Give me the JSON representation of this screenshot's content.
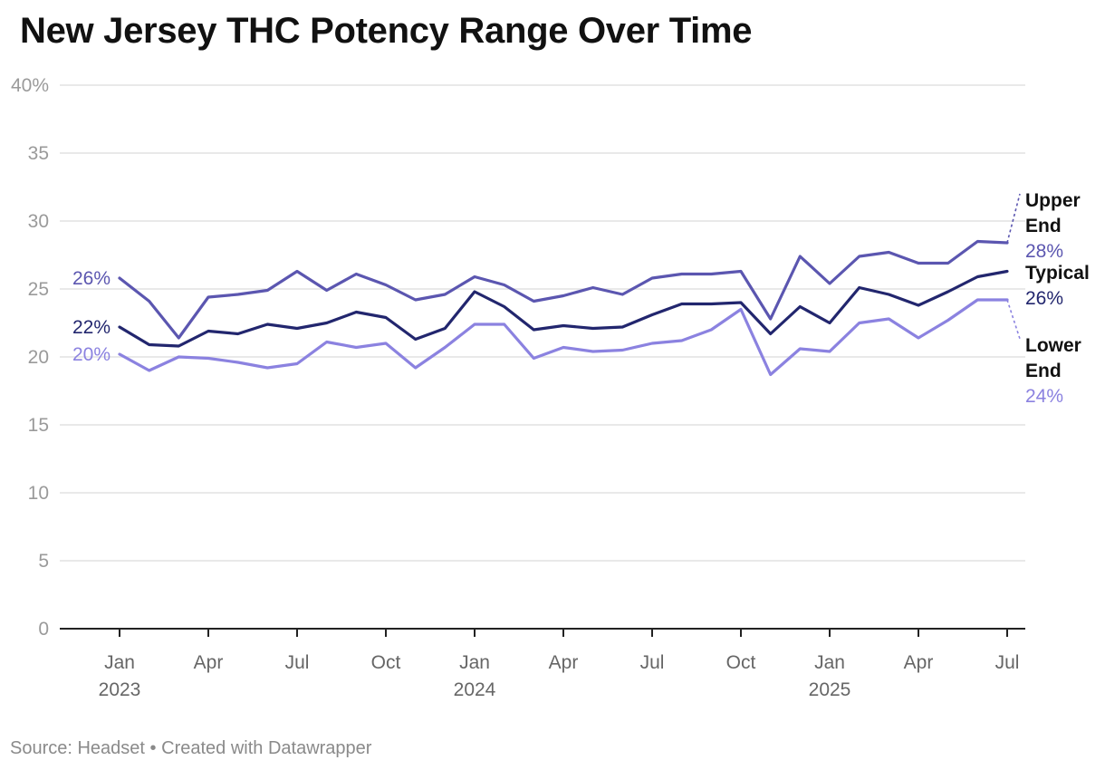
{
  "title": "New Jersey THC Potency Range Over Time",
  "footer": {
    "source_label": "Source: Headset",
    "separator": "•",
    "created_with": "Created with Datawrapper"
  },
  "colors": {
    "upper": "#5b56b0",
    "typical": "#22266e",
    "lower": "#8b82e0",
    "grid": "#e2e2e2",
    "axis": "#222222",
    "tick_text": "#666666",
    "y_tick_text": "#9a9a9a"
  },
  "chart_data": {
    "type": "line",
    "title": "New Jersey THC Potency Range Over Time",
    "x_unit": "month",
    "x": [
      "2023-01",
      "2023-02",
      "2023-03",
      "2023-04",
      "2023-05",
      "2023-06",
      "2023-07",
      "2023-08",
      "2023-09",
      "2023-10",
      "2023-11",
      "2023-12",
      "2024-01",
      "2024-02",
      "2024-03",
      "2024-04",
      "2024-05",
      "2024-06",
      "2024-07",
      "2024-08",
      "2024-09",
      "2024-10",
      "2024-11",
      "2024-12",
      "2025-01",
      "2025-02",
      "2025-03",
      "2025-04",
      "2025-05",
      "2025-06",
      "2025-07"
    ],
    "ylim": [
      0,
      40
    ],
    "y_ticks": [
      0,
      5,
      10,
      15,
      20,
      25,
      30,
      35,
      40
    ],
    "y_tick_labels": [
      "0",
      "5",
      "10",
      "15",
      "20",
      "25",
      "30",
      "35",
      "40%"
    ],
    "x_ticks": [
      {
        "x": "2023-01",
        "label": "Jan",
        "year": "2023"
      },
      {
        "x": "2023-04",
        "label": "Apr",
        "year": ""
      },
      {
        "x": "2023-07",
        "label": "Jul",
        "year": ""
      },
      {
        "x": "2023-10",
        "label": "Oct",
        "year": ""
      },
      {
        "x": "2024-01",
        "label": "Jan",
        "year": "2024"
      },
      {
        "x": "2024-04",
        "label": "Apr",
        "year": ""
      },
      {
        "x": "2024-07",
        "label": "Jul",
        "year": ""
      },
      {
        "x": "2024-10",
        "label": "Oct",
        "year": ""
      },
      {
        "x": "2025-01",
        "label": "Jan",
        "year": "2025"
      },
      {
        "x": "2025-04",
        "label": "Apr",
        "year": ""
      },
      {
        "x": "2025-07",
        "label": "Jul",
        "year": ""
      }
    ],
    "grid": true,
    "series": [
      {
        "key": "upper",
        "name": "Upper End",
        "name_lines": [
          "Upper",
          "End"
        ],
        "start_label": "26%",
        "end_label": "28%",
        "values": [
          25.8,
          24.1,
          21.4,
          24.4,
          24.6,
          24.9,
          26.3,
          24.9,
          26.1,
          25.3,
          24.2,
          24.6,
          25.9,
          25.3,
          24.1,
          24.5,
          25.1,
          24.6,
          25.8,
          26.1,
          26.1,
          26.3,
          22.8,
          27.4,
          25.4,
          27.4,
          27.7,
          26.9,
          26.9,
          28.5,
          28.4
        ]
      },
      {
        "key": "typical",
        "name": "Typical",
        "name_lines": [
          "Typical"
        ],
        "start_label": "22%",
        "end_label": "26%",
        "values": [
          22.2,
          20.9,
          20.8,
          21.9,
          21.7,
          22.4,
          22.1,
          22.5,
          23.3,
          22.9,
          21.3,
          22.1,
          24.8,
          23.7,
          22.0,
          22.3,
          22.1,
          22.2,
          23.1,
          23.9,
          23.9,
          24.0,
          21.7,
          23.7,
          22.5,
          25.1,
          24.6,
          23.8,
          24.8,
          25.9,
          26.3
        ]
      },
      {
        "key": "lower",
        "name": "Lower End",
        "name_lines": [
          "Lower",
          "End"
        ],
        "start_label": "20%",
        "end_label": "24%",
        "values": [
          20.2,
          19.0,
          20.0,
          19.9,
          19.6,
          19.2,
          19.5,
          21.1,
          20.7,
          21.0,
          19.2,
          20.7,
          22.4,
          22.4,
          19.9,
          20.7,
          20.4,
          20.5,
          21.0,
          21.2,
          22.0,
          23.5,
          18.7,
          20.6,
          20.4,
          22.5,
          22.8,
          21.4,
          22.7,
          24.2,
          24.2
        ]
      }
    ]
  }
}
